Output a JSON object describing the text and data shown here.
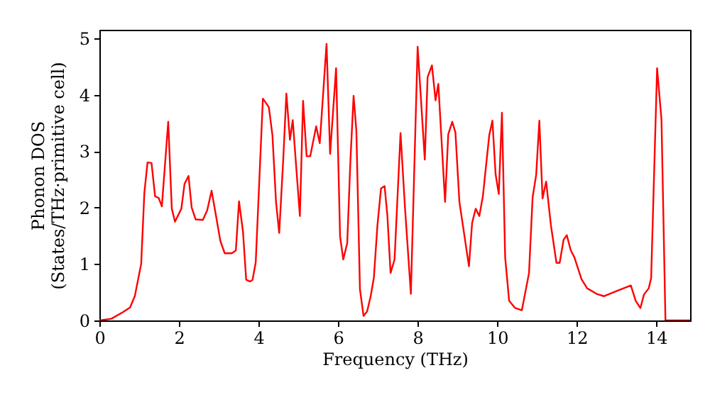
{
  "chart_data": {
    "type": "line",
    "xlabel": "Frequency (THz)",
    "ylabel": "Phonon DOS\n(States/THz·primitive cell)",
    "xlim": [
      0,
      14.85
    ],
    "ylim": [
      0,
      5.15
    ],
    "xticks": [
      0,
      2,
      4,
      6,
      8,
      10,
      12,
      14
    ],
    "yticks": [
      0,
      1,
      2,
      3,
      4,
      5
    ],
    "grid": false,
    "marker": "none",
    "line_style": "solid",
    "x": [
      0,
      0.3,
      0.6,
      0.77,
      0.89,
      1.05,
      1.13,
      1.21,
      1.31,
      1.4,
      1.49,
      1.57,
      1.73,
      1.82,
      1.9,
      2.06,
      2.14,
      2.24,
      2.32,
      2.42,
      2.6,
      2.71,
      2.82,
      2.92,
      3.04,
      3.15,
      3.33,
      3.43,
      3.51,
      3.61,
      3.69,
      3.79,
      3.85,
      3.93,
      4.11,
      4.26,
      4.35,
      4.44,
      4.52,
      4.62,
      4.7,
      4.79,
      4.86,
      5.04,
      5.12,
      5.21,
      5.3,
      5.45,
      5.54,
      5.71,
      5.8,
      5.95,
      6.05,
      6.13,
      6.23,
      6.31,
      6.39,
      6.46,
      6.55,
      6.64,
      6.73,
      6.82,
      6.9,
      6.99,
      7.08,
      7.17,
      7.24,
      7.32,
      7.42,
      7.57,
      7.68,
      7.83,
      8.0,
      8.18,
      8.25,
      8.36,
      8.45,
      8.52,
      8.69,
      8.77,
      8.87,
      8.95,
      9.05,
      9.17,
      9.29,
      9.37,
      9.46,
      9.55,
      9.64,
      9.8,
      9.88,
      9.96,
      10.04,
      10.12,
      10.2,
      10.3,
      10.45,
      10.62,
      10.8,
      10.89,
      10.98,
      11.06,
      11.14,
      11.23,
      11.35,
      11.49,
      11.57,
      11.67,
      11.75,
      11.85,
      11.94,
      12.12,
      12.26,
      12.5,
      12.68,
      13.03,
      13.36,
      13.48,
      13.6,
      13.69,
      13.81,
      13.87,
      14.02,
      14.13,
      14.23,
      14.85
    ],
    "series": [
      {
        "color": "#ff0000",
        "values": [
          0,
          0.03,
          0.15,
          0.23,
          0.43,
          1.0,
          2.26,
          2.8,
          2.79,
          2.2,
          2.17,
          2.02,
          3.52,
          1.98,
          1.75,
          1.98,
          2.42,
          2.56,
          2.0,
          1.79,
          1.78,
          1.95,
          2.3,
          1.9,
          1.41,
          1.19,
          1.19,
          1.24,
          2.11,
          1.57,
          0.72,
          0.69,
          0.72,
          1.03,
          3.93,
          3.78,
          3.28,
          2.1,
          1.55,
          2.83,
          4.02,
          3.2,
          3.55,
          1.85,
          3.89,
          2.91,
          2.91,
          3.44,
          3.14,
          4.9,
          2.95,
          4.47,
          1.49,
          1.08,
          1.37,
          2.83,
          3.98,
          3.36,
          0.55,
          0.08,
          0.16,
          0.43,
          0.76,
          1.69,
          2.34,
          2.38,
          1.85,
          0.84,
          1.08,
          3.32,
          2.02,
          0.47,
          4.85,
          2.85,
          4.31,
          4.52,
          3.9,
          4.19,
          2.1,
          3.3,
          3.52,
          3.33,
          2.1,
          1.53,
          0.96,
          1.73,
          1.98,
          1.85,
          2.2,
          3.28,
          3.54,
          2.59,
          2.24,
          3.68,
          1.12,
          0.35,
          0.22,
          0.18,
          0.84,
          2.18,
          2.58,
          3.54,
          2.16,
          2.46,
          1.69,
          1.02,
          1.02,
          1.43,
          1.51,
          1.24,
          1.12,
          0.73,
          0.57,
          0.47,
          0.43,
          0.53,
          0.62,
          0.35,
          0.22,
          0.46,
          0.57,
          0.75,
          4.47,
          3.56,
          0,
          0
        ]
      }
    ]
  }
}
